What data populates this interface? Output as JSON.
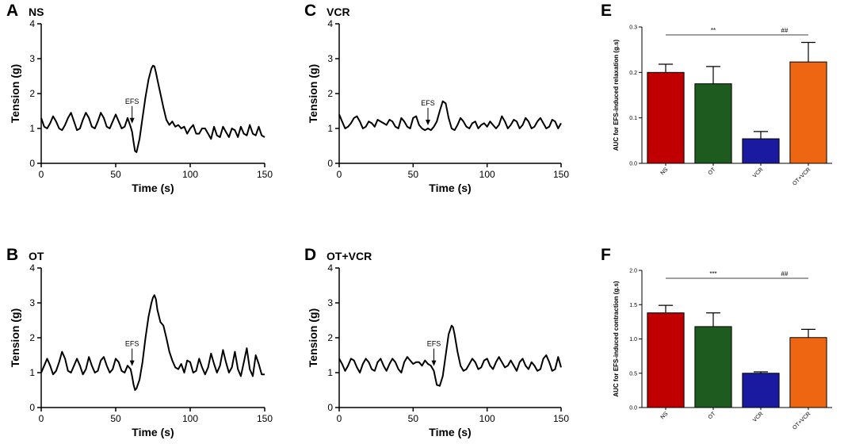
{
  "chart_data": [
    {
      "panel": "A",
      "type": "line",
      "title": "NS",
      "xlabel": "Time (s)",
      "ylabel": "Tension (g)",
      "xlim": [
        0,
        150
      ],
      "ylim": [
        0,
        4
      ],
      "xticks": [
        "0",
        "50",
        "100",
        "150"
      ],
      "yticks": [
        "0",
        "1",
        "2",
        "3",
        "4"
      ],
      "annotation": {
        "text": "EFS",
        "x": 61,
        "y": 1.05
      },
      "x": [
        0,
        2,
        4,
        6,
        8,
        10,
        12,
        14,
        16,
        18,
        20,
        22,
        24,
        26,
        28,
        30,
        32,
        34,
        36,
        38,
        40,
        42,
        44,
        46,
        48,
        50,
        52,
        54,
        56,
        58,
        60,
        61,
        62,
        63,
        64,
        66,
        68,
        70,
        72,
        74,
        75,
        76,
        77,
        78,
        80,
        82,
        84,
        86,
        88,
        90,
        92,
        94,
        96,
        98,
        100,
        102,
        104,
        106,
        108,
        110,
        112,
        114,
        116,
        118,
        120,
        122,
        124,
        126,
        128,
        130,
        132,
        134,
        136,
        138,
        140,
        142,
        144,
        146,
        148,
        150
      ],
      "y": [
        1.3,
        1.05,
        1.0,
        1.15,
        1.35,
        1.2,
        1.0,
        0.95,
        1.1,
        1.3,
        1.45,
        1.2,
        0.95,
        1.0,
        1.25,
        1.45,
        1.3,
        1.05,
        1.0,
        1.2,
        1.45,
        1.3,
        1.05,
        1.0,
        1.2,
        1.4,
        1.2,
        1.0,
        1.05,
        1.3,
        1.05,
        0.9,
        0.6,
        0.35,
        0.32,
        0.7,
        1.3,
        1.9,
        2.4,
        2.72,
        2.8,
        2.78,
        2.6,
        2.4,
        2.0,
        1.6,
        1.25,
        1.1,
        1.2,
        1.05,
        1.1,
        1.0,
        1.05,
        0.85,
        1.0,
        1.1,
        0.85,
        0.85,
        1.0,
        1.0,
        0.85,
        0.7,
        1.05,
        0.8,
        0.75,
        1.05,
        0.9,
        0.75,
        1.0,
        0.95,
        0.75,
        1.05,
        0.85,
        0.8,
        1.1,
        0.85,
        0.8,
        1.05,
        0.8,
        0.75
      ]
    },
    {
      "panel": "B",
      "type": "line",
      "title": "OT",
      "xlabel": "Time (s)",
      "ylabel": "Tension (g)",
      "xlim": [
        0,
        150
      ],
      "ylim": [
        0,
        4
      ],
      "xticks": [
        "0",
        "50",
        "100",
        "150"
      ],
      "yticks": [
        "0",
        "1",
        "2",
        "3",
        "4"
      ],
      "annotation": {
        "text": "EFS",
        "x": 61,
        "y": 1.1
      },
      "x": [
        0,
        2,
        4,
        6,
        8,
        10,
        12,
        14,
        16,
        18,
        20,
        22,
        24,
        26,
        28,
        30,
        32,
        34,
        36,
        38,
        40,
        42,
        44,
        46,
        48,
        50,
        52,
        54,
        56,
        58,
        60,
        61,
        62,
        63,
        64,
        66,
        68,
        70,
        72,
        74,
        75,
        76,
        77,
        78,
        80,
        82,
        84,
        86,
        88,
        90,
        92,
        94,
        96,
        98,
        100,
        102,
        104,
        106,
        108,
        110,
        112,
        114,
        116,
        118,
        120,
        122,
        124,
        126,
        128,
        130,
        132,
        134,
        136,
        138,
        140,
        142,
        144,
        146,
        148,
        150
      ],
      "y": [
        1.0,
        1.2,
        1.4,
        1.2,
        0.95,
        1.05,
        1.3,
        1.6,
        1.4,
        1.05,
        1.0,
        1.2,
        1.4,
        1.2,
        0.95,
        1.1,
        1.45,
        1.2,
        1.0,
        1.05,
        1.35,
        1.45,
        1.2,
        1.0,
        1.1,
        1.4,
        1.3,
        1.05,
        1.0,
        1.2,
        1.1,
        0.9,
        0.65,
        0.5,
        0.55,
        0.8,
        1.3,
        2.0,
        2.6,
        3.0,
        3.15,
        3.22,
        3.1,
        2.8,
        2.45,
        2.35,
        2.0,
        1.6,
        1.35,
        1.15,
        1.1,
        1.25,
        1.0,
        1.35,
        1.3,
        1.0,
        1.05,
        1.4,
        1.15,
        0.95,
        1.15,
        1.55,
        1.25,
        1.0,
        1.2,
        1.65,
        1.3,
        1.0,
        1.15,
        1.6,
        1.1,
        0.9,
        1.3,
        1.7,
        1.1,
        0.9,
        1.5,
        1.25,
        0.95,
        0.95
      ]
    },
    {
      "panel": "C",
      "type": "line",
      "title": "VCR",
      "xlabel": "Time (s)",
      "ylabel": "Tension (g)",
      "xlim": [
        0,
        150
      ],
      "ylim": [
        0,
        4
      ],
      "xticks": [
        "0",
        "50",
        "100",
        "150"
      ],
      "yticks": [
        "0",
        "1",
        "2",
        "3",
        "4"
      ],
      "annotation": {
        "text": "EFS",
        "x": 60,
        "y": 1.0
      },
      "x": [
        0,
        2,
        4,
        6,
        8,
        10,
        12,
        14,
        16,
        18,
        20,
        22,
        24,
        26,
        28,
        30,
        32,
        34,
        36,
        38,
        40,
        42,
        44,
        46,
        48,
        50,
        52,
        54,
        56,
        58,
        60,
        62,
        64,
        66,
        68,
        70,
        72,
        74,
        76,
        78,
        80,
        82,
        84,
        86,
        88,
        90,
        92,
        94,
        96,
        98,
        100,
        102,
        104,
        106,
        108,
        110,
        112,
        114,
        116,
        118,
        120,
        122,
        124,
        126,
        128,
        130,
        132,
        134,
        136,
        138,
        140,
        142,
        144,
        146,
        148,
        150
      ],
      "y": [
        1.4,
        1.2,
        1.0,
        1.05,
        1.15,
        1.3,
        1.35,
        1.2,
        1.0,
        1.05,
        1.2,
        1.15,
        1.05,
        1.25,
        1.2,
        1.15,
        1.1,
        1.25,
        1.2,
        1.05,
        1.0,
        1.3,
        1.2,
        1.05,
        1.0,
        1.3,
        1.35,
        1.1,
        1.0,
        0.95,
        1.0,
        0.95,
        1.05,
        1.2,
        1.5,
        1.78,
        1.72,
        1.3,
        1.0,
        0.95,
        1.1,
        1.3,
        1.2,
        1.05,
        1.0,
        1.15,
        1.2,
        1.0,
        1.1,
        1.15,
        1.05,
        1.2,
        1.1,
        1.0,
        1.1,
        1.35,
        1.2,
        1.0,
        1.1,
        1.25,
        1.2,
        1.0,
        1.1,
        1.3,
        1.2,
        1.0,
        1.05,
        1.2,
        1.3,
        1.15,
        1.0,
        1.05,
        1.25,
        1.2,
        1.0,
        1.15
      ]
    },
    {
      "panel": "D",
      "type": "line",
      "title": "OT+VCR",
      "xlabel": "Time (s)",
      "ylabel": "Tension (g)",
      "xlim": [
        0,
        150
      ],
      "ylim": [
        0,
        4
      ],
      "xticks": [
        "0",
        "50",
        "100",
        "150"
      ],
      "yticks": [
        "0",
        "1",
        "2",
        "3",
        "4"
      ],
      "annotation": {
        "text": "EFS",
        "x": 64,
        "y": 1.1
      },
      "x": [
        0,
        2,
        4,
        6,
        8,
        10,
        12,
        14,
        16,
        18,
        20,
        22,
        24,
        26,
        28,
        30,
        32,
        34,
        36,
        38,
        40,
        42,
        44,
        46,
        48,
        50,
        52,
        54,
        56,
        58,
        60,
        62,
        64,
        65,
        66,
        68,
        70,
        72,
        74,
        76,
        77,
        78,
        80,
        82,
        84,
        86,
        88,
        90,
        92,
        94,
        96,
        98,
        100,
        102,
        104,
        106,
        108,
        110,
        112,
        114,
        116,
        118,
        120,
        122,
        124,
        126,
        128,
        130,
        132,
        134,
        136,
        138,
        140,
        142,
        144,
        146,
        148,
        150
      ],
      "y": [
        1.4,
        1.25,
        1.05,
        1.2,
        1.4,
        1.35,
        1.15,
        1.0,
        1.25,
        1.4,
        1.3,
        1.1,
        1.05,
        1.3,
        1.4,
        1.2,
        1.05,
        1.25,
        1.4,
        1.3,
        1.1,
        1.0,
        1.3,
        1.45,
        1.35,
        1.25,
        1.3,
        1.3,
        1.2,
        1.35,
        1.25,
        1.2,
        1.05,
        0.85,
        0.65,
        0.62,
        0.9,
        1.5,
        2.1,
        2.35,
        2.3,
        2.1,
        1.6,
        1.2,
        1.05,
        1.1,
        1.25,
        1.4,
        1.3,
        1.1,
        1.15,
        1.35,
        1.4,
        1.2,
        1.1,
        1.3,
        1.45,
        1.3,
        1.15,
        1.2,
        1.35,
        1.2,
        1.05,
        1.3,
        1.4,
        1.2,
        1.1,
        1.3,
        1.2,
        1.05,
        1.1,
        1.4,
        1.5,
        1.3,
        1.05,
        1.1,
        1.45,
        1.15
      ]
    },
    {
      "panel": "E",
      "type": "bar",
      "categories": [
        "NS",
        "OT",
        "VCR",
        "OT+VCR"
      ],
      "values": [
        0.2,
        0.175,
        0.054,
        0.223
      ],
      "errors": [
        0.018,
        0.038,
        0.016,
        0.043
      ],
      "colors": [
        "#c00000",
        "#1e5b1e",
        "#1a1aa0",
        "#ee6611"
      ],
      "ylabel": "AUC for EFS-induced relaxation (g.s)",
      "xlabel": "",
      "ylim": [
        0,
        0.3
      ],
      "yticks": [
        "0.0",
        "0.1",
        "0.2",
        "0.3"
      ],
      "significance": [
        {
          "from": "NS",
          "to": "VCR",
          "label": "**"
        },
        {
          "from": "VCR",
          "to": "OT+VCR",
          "label": "##"
        }
      ]
    },
    {
      "panel": "F",
      "type": "bar",
      "categories": [
        "NS",
        "OT",
        "VCR",
        "OT+VCR"
      ],
      "values": [
        1.38,
        1.18,
        0.5,
        1.02
      ],
      "errors": [
        0.11,
        0.2,
        0.02,
        0.12
      ],
      "colors": [
        "#c00000",
        "#1e5b1e",
        "#1a1aa0",
        "#ee6611"
      ],
      "ylabel": "AUC for EFS-induced contraction (g.s)",
      "xlabel": "",
      "ylim": [
        0,
        2.0
      ],
      "yticks": [
        "0.0",
        "0.5",
        "1.0",
        "1.5",
        "2.0"
      ],
      "significance": [
        {
          "from": "NS",
          "to": "VCR",
          "label": "***"
        },
        {
          "from": "VCR",
          "to": "OT+VCR",
          "label": "##"
        }
      ]
    }
  ]
}
